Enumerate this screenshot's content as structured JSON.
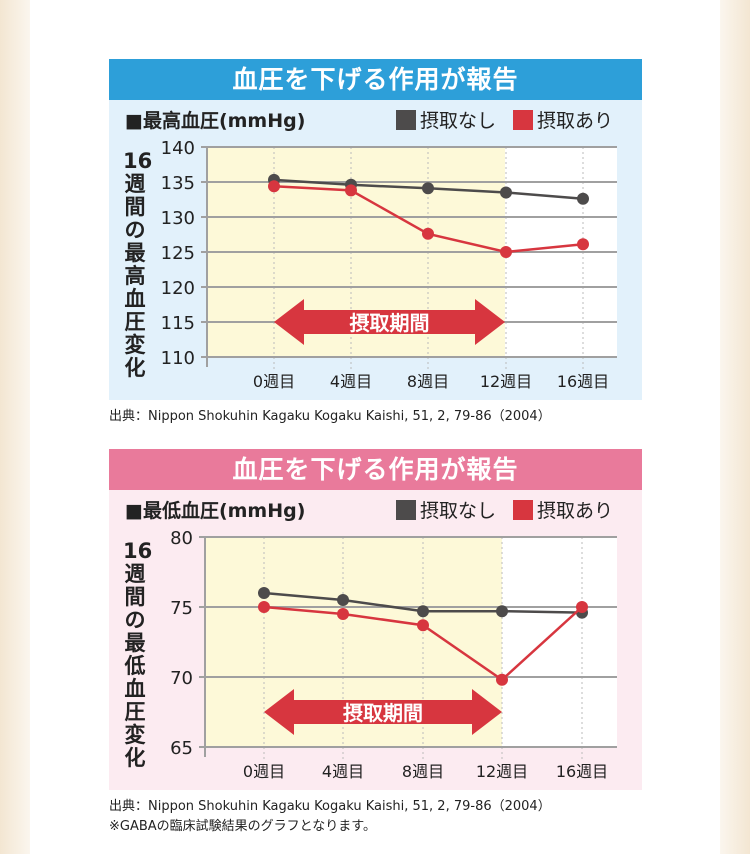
{
  "charts": [
    {
      "title": "血圧を下げる作用が報告",
      "subtitle": "■最高血圧(mmHg)",
      "ylabel": "16週間の最高血圧変化",
      "legend": [
        "摂取なし",
        "摂取あり"
      ],
      "period_label": "摂取期間",
      "source": "出典：Nippon Shokuhin Kagaku Kogaku Kaishi, 51, 2, 79-86（2004）",
      "note": "",
      "header_color": "#2d9fd9",
      "bg_color": "#e2f1fb"
    },
    {
      "title": "血圧を下げる作用が報告",
      "subtitle": "■最低血圧(mmHg)",
      "ylabel": "16週間の最低血圧変化",
      "legend": [
        "摂取なし",
        "摂取あり"
      ],
      "period_label": "摂取期間",
      "source": "出典：Nippon Shokuhin Kagaku Kogaku Kaishi, 51, 2, 79-86（2004）",
      "note": "※GABAの臨床試験結果のグラフとなります。",
      "header_color": "#e97a9b",
      "bg_color": "#fcebf1"
    }
  ],
  "chart_data": [
    {
      "type": "line",
      "title": "■最高血圧(mmHg)",
      "ylabel": "16週間の最高血圧変化",
      "categories": [
        "0週目",
        "4週目",
        "8週目",
        "12週目",
        "16週目"
      ],
      "ylim": [
        110,
        140
      ],
      "yticks": [
        110,
        115,
        120,
        125,
        130,
        135,
        140
      ],
      "grid": true,
      "legend_position": "top-right",
      "shaded_period": [
        "0週目",
        "12週目"
      ],
      "series": [
        {
          "name": "摂取なし",
          "color": "#4d4b4b",
          "values": [
            135.3,
            134.6,
            134.1,
            133.5,
            132.6
          ]
        },
        {
          "name": "摂取あり",
          "color": "#d7363f",
          "values": [
            134.4,
            133.8,
            127.6,
            125.0,
            126.1
          ]
        }
      ]
    },
    {
      "type": "line",
      "title": "■最低血圧(mmHg)",
      "ylabel": "16週間の最低血圧変化",
      "categories": [
        "0週目",
        "4週目",
        "8週目",
        "12週目",
        "16週目"
      ],
      "ylim": [
        65,
        80
      ],
      "yticks": [
        65,
        70,
        75,
        80
      ],
      "grid": true,
      "legend_position": "top-right",
      "shaded_period": [
        "0週目",
        "12週目"
      ],
      "series": [
        {
          "name": "摂取なし",
          "color": "#4d4b4b",
          "values": [
            76.0,
            75.5,
            74.7,
            74.7,
            74.6
          ]
        },
        {
          "name": "摂取あり",
          "color": "#d7363f",
          "values": [
            75.0,
            74.5,
            73.7,
            69.8,
            75.0
          ]
        }
      ]
    }
  ]
}
